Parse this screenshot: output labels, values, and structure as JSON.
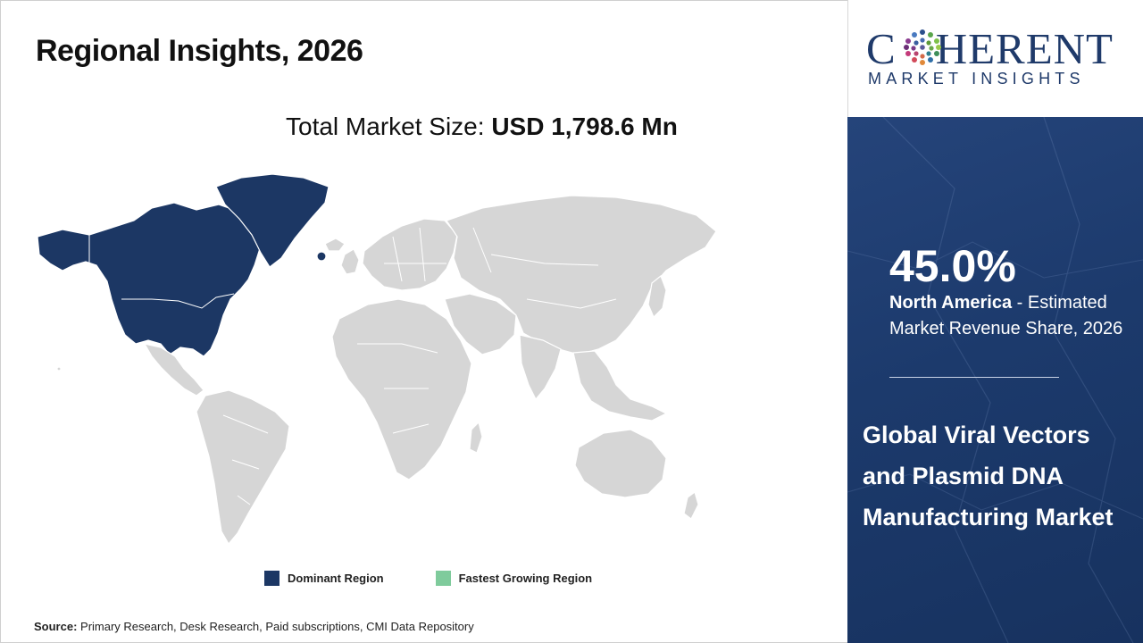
{
  "header": {
    "title": "Regional Insights, 2026"
  },
  "market_size": {
    "label": "Total Market Size: ",
    "value": "USD 1,798.6 Mn"
  },
  "legend": {
    "items": [
      {
        "label": "Dominant Region",
        "color": "#1c3764"
      },
      {
        "label": "Fastest Growing Region",
        "color": "#7fcb9c"
      }
    ]
  },
  "map": {
    "dominant_region": "North America",
    "colors": {
      "dominant": "#1c3764",
      "other": "#d6d6d6"
    }
  },
  "source": {
    "label": "Source:",
    "text": " Primary Research, Desk Research, Paid subscriptions, CMI Data Repository"
  },
  "logo": {
    "word": "COHERENT",
    "word_prefix": "C",
    "word_suffix": "HERENT",
    "subtitle": "MARKET INSIGHTS"
  },
  "panel": {
    "share_value": "45.0%",
    "share_region": "North America",
    "share_text": " - Estimated Market Revenue Share, 2026",
    "market_name": "Global Viral Vectors and Plasmid DNA Manufacturing Market",
    "background_color": "#1c3a6c"
  }
}
